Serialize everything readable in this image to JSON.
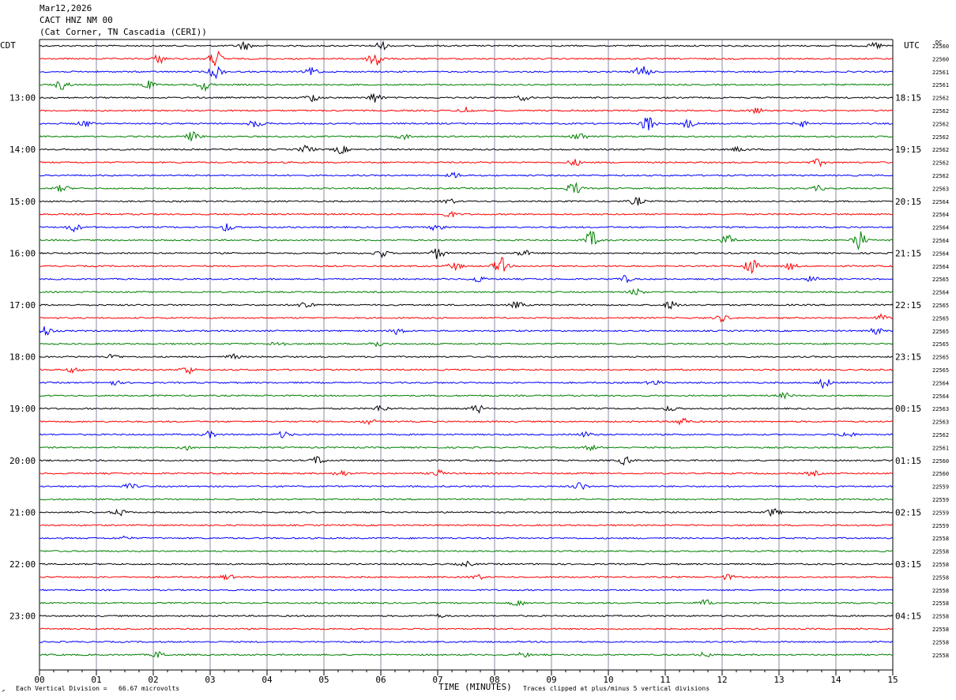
{
  "header": {
    "date": "Mar12,2026",
    "station": "CACT HNZ NM 00",
    "location": "(Cat Corner, TN Cascadia (CERI))"
  },
  "left_axis_label": "CDT",
  "right_axis_label": "UTC",
  "dc_label": "DC",
  "footer": {
    "corner_mark": "↗",
    "scale": "Each Vertical Division =   66.67 microvolts",
    "clip": "Traces clipped at plus/minus 5 vertical divisions"
  },
  "colors": {
    "cycle": [
      "#000000",
      "#ff0000",
      "#0000ff",
      "#008000"
    ],
    "grid": "#6f6f8f"
  },
  "chart_data": {
    "type": "line",
    "title": "",
    "xlabel": "TIME (MINUTES)",
    "x_ticks": [
      "00",
      "01",
      "02",
      "03",
      "04",
      "05",
      "06",
      "07",
      "08",
      "09",
      "10",
      "11",
      "12",
      "13",
      "14",
      "15"
    ],
    "xlim": [
      0,
      15
    ],
    "trace_count": 48,
    "minutes_per_trace": 15,
    "left_time_labels": [
      "13:00",
      "14:00",
      "15:00",
      "16:00",
      "17:00",
      "18:00",
      "19:00",
      "20:00",
      "21:00",
      "22:00",
      "23:00"
    ],
    "right_time_labels": [
      "18:15",
      "19:15",
      "20:15",
      "21:15",
      "22:15",
      "23:15",
      "00:15",
      "01:15",
      "02:15",
      "03:15",
      "04:15"
    ],
    "dc_values": [
      "22560",
      "22560",
      "22561",
      "22561",
      "22562",
      "22562",
      "22562",
      "22562",
      "22562",
      "22562",
      "22562",
      "22563",
      "22564",
      "22564",
      "22564",
      "22564",
      "22564",
      "22564",
      "22565",
      "22564",
      "22565",
      "22565",
      "22565",
      "22565",
      "22565",
      "22565",
      "22564",
      "22564",
      "22563",
      "22563",
      "22562",
      "22561",
      "22560",
      "22560",
      "22559",
      "22559",
      "22559",
      "22559",
      "22558",
      "22558",
      "22558",
      "22558",
      "22558",
      "22558",
      "22558",
      "22558",
      "22558",
      "22558"
    ],
    "bursts": [
      {
        "trace": 0,
        "minute": 3.6,
        "amp": 5
      },
      {
        "trace": 0,
        "minute": 6.0,
        "amp": 5
      },
      {
        "trace": 0,
        "minute": 14.7,
        "amp": 4
      },
      {
        "trace": 1,
        "minute": 2.1,
        "amp": 5
      },
      {
        "trace": 1,
        "minute": 3.1,
        "amp": 10
      },
      {
        "trace": 1,
        "minute": 5.9,
        "amp": 13
      },
      {
        "trace": 2,
        "minute": 3.1,
        "amp": 8
      },
      {
        "trace": 2,
        "minute": 4.8,
        "amp": 5
      },
      {
        "trace": 2,
        "minute": 10.6,
        "amp": 10
      },
      {
        "trace": 3,
        "minute": 0.4,
        "amp": 6
      },
      {
        "trace": 3,
        "minute": 1.9,
        "amp": 5
      },
      {
        "trace": 3,
        "minute": 2.9,
        "amp": 7
      },
      {
        "trace": 4,
        "minute": 4.8,
        "amp": 5
      },
      {
        "trace": 4,
        "minute": 5.9,
        "amp": 6
      },
      {
        "trace": 4,
        "minute": 8.5,
        "amp": 3
      },
      {
        "trace": 5,
        "minute": 7.5,
        "amp": 4
      },
      {
        "trace": 5,
        "minute": 12.6,
        "amp": 3
      },
      {
        "trace": 6,
        "minute": 0.8,
        "amp": 4
      },
      {
        "trace": 6,
        "minute": 3.8,
        "amp": 5
      },
      {
        "trace": 6,
        "minute": 10.7,
        "amp": 11
      },
      {
        "trace": 6,
        "minute": 11.4,
        "amp": 5
      },
      {
        "trace": 6,
        "minute": 13.4,
        "amp": 4
      },
      {
        "trace": 7,
        "minute": 2.7,
        "amp": 6
      },
      {
        "trace": 7,
        "minute": 6.4,
        "amp": 3
      },
      {
        "trace": 7,
        "minute": 9.5,
        "amp": 5
      },
      {
        "trace": 8,
        "minute": 4.7,
        "amp": 5
      },
      {
        "trace": 8,
        "minute": 5.3,
        "amp": 5
      },
      {
        "trace": 8,
        "minute": 12.3,
        "amp": 3
      },
      {
        "trace": 9,
        "minute": 9.4,
        "amp": 4
      },
      {
        "trace": 9,
        "minute": 13.7,
        "amp": 4
      },
      {
        "trace": 10,
        "minute": 7.3,
        "amp": 3
      },
      {
        "trace": 11,
        "minute": 0.4,
        "amp": 4
      },
      {
        "trace": 11,
        "minute": 9.4,
        "amp": 8
      },
      {
        "trace": 11,
        "minute": 13.7,
        "amp": 3
      },
      {
        "trace": 12,
        "minute": 10.5,
        "amp": 5
      },
      {
        "trace": 12,
        "minute": 7.2,
        "amp": 3
      },
      {
        "trace": 13,
        "minute": 7.2,
        "amp": 4
      },
      {
        "trace": 14,
        "minute": 0.6,
        "amp": 5
      },
      {
        "trace": 14,
        "minute": 3.3,
        "amp": 5
      },
      {
        "trace": 14,
        "minute": 7.0,
        "amp": 5
      },
      {
        "trace": 15,
        "minute": 9.7,
        "amp": 11
      },
      {
        "trace": 15,
        "minute": 12.1,
        "amp": 6
      },
      {
        "trace": 15,
        "minute": 14.4,
        "amp": 13
      },
      {
        "trace": 16,
        "minute": 7.0,
        "amp": 7
      },
      {
        "trace": 16,
        "minute": 6.0,
        "amp": 5
      },
      {
        "trace": 16,
        "minute": 8.5,
        "amp": 4
      },
      {
        "trace": 17,
        "minute": 8.1,
        "amp": 11
      },
      {
        "trace": 17,
        "minute": 12.5,
        "amp": 11
      },
      {
        "trace": 17,
        "minute": 7.3,
        "amp": 5
      },
      {
        "trace": 17,
        "minute": 13.2,
        "amp": 4
      },
      {
        "trace": 18,
        "minute": 7.7,
        "amp": 4
      },
      {
        "trace": 18,
        "minute": 10.3,
        "amp": 4
      },
      {
        "trace": 18,
        "minute": 13.6,
        "amp": 4
      },
      {
        "trace": 19,
        "minute": 10.5,
        "amp": 4
      },
      {
        "trace": 20,
        "minute": 4.7,
        "amp": 6
      },
      {
        "trace": 20,
        "minute": 11.1,
        "amp": 5
      },
      {
        "trace": 20,
        "minute": 8.4,
        "amp": 4
      },
      {
        "trace": 21,
        "minute": 12.0,
        "amp": 4
      },
      {
        "trace": 21,
        "minute": 14.8,
        "amp": 4
      },
      {
        "trace": 22,
        "minute": 0.1,
        "amp": 6
      },
      {
        "trace": 22,
        "minute": 6.3,
        "amp": 4
      },
      {
        "trace": 22,
        "minute": 14.7,
        "amp": 4
      },
      {
        "trace": 23,
        "minute": 4.2,
        "amp": 4
      },
      {
        "trace": 23,
        "minute": 5.9,
        "amp": 4
      },
      {
        "trace": 24,
        "minute": 1.3,
        "amp": 3
      },
      {
        "trace": 24,
        "minute": 3.4,
        "amp": 3
      },
      {
        "trace": 25,
        "minute": 2.6,
        "amp": 5
      },
      {
        "trace": 25,
        "minute": 0.6,
        "amp": 3
      },
      {
        "trace": 26,
        "minute": 13.8,
        "amp": 6
      },
      {
        "trace": 26,
        "minute": 1.3,
        "amp": 3
      },
      {
        "trace": 26,
        "minute": 10.8,
        "amp": 3
      },
      {
        "trace": 27,
        "minute": 13.1,
        "amp": 3
      },
      {
        "trace": 28,
        "minute": 7.7,
        "amp": 5
      },
      {
        "trace": 28,
        "minute": 6.0,
        "amp": 4
      },
      {
        "trace": 28,
        "minute": 11.1,
        "amp": 3
      },
      {
        "trace": 29,
        "minute": 5.8,
        "amp": 3
      },
      {
        "trace": 29,
        "minute": 11.3,
        "amp": 5
      },
      {
        "trace": 30,
        "minute": 3.0,
        "amp": 4
      },
      {
        "trace": 30,
        "minute": 4.3,
        "amp": 4
      },
      {
        "trace": 30,
        "minute": 14.2,
        "amp": 4
      },
      {
        "trace": 30,
        "minute": 9.6,
        "amp": 3
      },
      {
        "trace": 31,
        "minute": 2.6,
        "amp": 3
      },
      {
        "trace": 31,
        "minute": 9.7,
        "amp": 3
      },
      {
        "trace": 32,
        "minute": 4.9,
        "amp": 5
      },
      {
        "trace": 32,
        "minute": 10.3,
        "amp": 5
      },
      {
        "trace": 33,
        "minute": 5.3,
        "amp": 4
      },
      {
        "trace": 33,
        "minute": 7.0,
        "amp": 4
      },
      {
        "trace": 33,
        "minute": 13.6,
        "amp": 3
      },
      {
        "trace": 34,
        "minute": 9.5,
        "amp": 5
      },
      {
        "trace": 34,
        "minute": 1.6,
        "amp": 3
      },
      {
        "trace": 36,
        "minute": 1.4,
        "amp": 4
      },
      {
        "trace": 36,
        "minute": 12.9,
        "amp": 5
      },
      {
        "trace": 38,
        "minute": 1.5,
        "amp": 2
      },
      {
        "trace": 40,
        "minute": 7.5,
        "amp": 3
      },
      {
        "trace": 41,
        "minute": 3.3,
        "amp": 3
      },
      {
        "trace": 41,
        "minute": 7.7,
        "amp": 3
      },
      {
        "trace": 41,
        "minute": 12.1,
        "amp": 3
      },
      {
        "trace": 43,
        "minute": 8.4,
        "amp": 4
      },
      {
        "trace": 43,
        "minute": 11.7,
        "amp": 4
      },
      {
        "trace": 44,
        "minute": 7.0,
        "amp": 2
      },
      {
        "trace": 47,
        "minute": 2.1,
        "amp": 4
      },
      {
        "trace": 47,
        "minute": 8.5,
        "amp": 3
      },
      {
        "trace": 47,
        "minute": 11.7,
        "amp": 3
      }
    ]
  }
}
